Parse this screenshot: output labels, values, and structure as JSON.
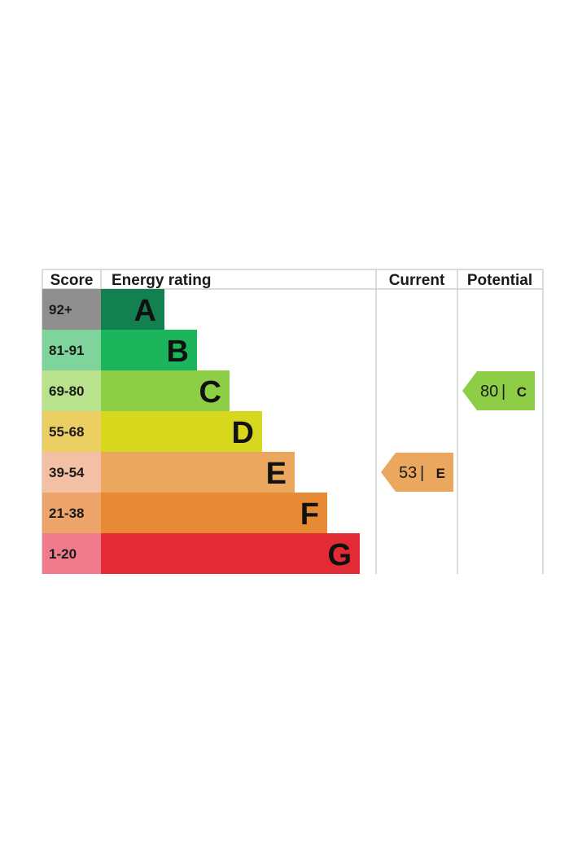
{
  "chart_data": {
    "type": "bar",
    "headers": {
      "score": "Score",
      "rating": "Energy rating",
      "current": "Current",
      "potential": "Potential"
    },
    "bands": [
      {
        "letter": "A",
        "score": "92+",
        "color": "#12804f",
        "score_color": "#8f8f8f"
      },
      {
        "letter": "B",
        "score": "81-91",
        "color": "#1db55c",
        "score_color": "#7ed49a"
      },
      {
        "letter": "C",
        "score": "69-80",
        "color": "#8dce46",
        "score_color": "#b8e28c"
      },
      {
        "letter": "D",
        "score": "55-68",
        "color": "#d7d71e",
        "score_color": "#eccf63"
      },
      {
        "letter": "E",
        "score": "39-54",
        "color": "#eaa75d",
        "score_color": "#f4c0a5"
      },
      {
        "letter": "F",
        "score": "21-38",
        "color": "#e78a36",
        "score_color": "#eca46b"
      },
      {
        "letter": "G",
        "score": "1-20",
        "color": "#e32b35",
        "score_color": "#ef7b8c"
      }
    ],
    "current": {
      "value": 53,
      "band": "E",
      "separator": "|",
      "color": "#eaa75d"
    },
    "potential": {
      "value": 80,
      "band": "C",
      "separator": "|",
      "color": "#8dce46"
    }
  }
}
